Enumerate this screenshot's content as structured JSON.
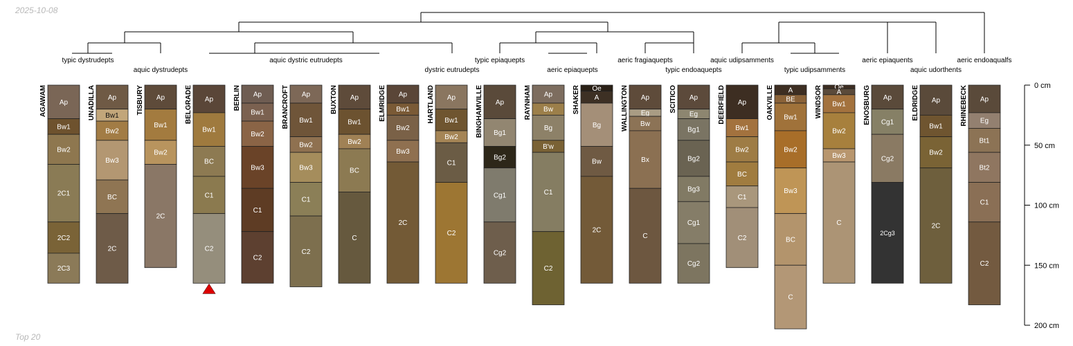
{
  "header": {
    "date": "2025-10-08"
  },
  "footer": {
    "label": "Top 20"
  },
  "chart_data": {
    "type": "soil-profile",
    "depth_axis": {
      "unit": "cm",
      "ticks": [
        0,
        50,
        100,
        150,
        200
      ],
      "tick_labels": [
        "0 cm",
        "50 cm",
        "100 cm",
        "150 cm",
        "200 cm"
      ]
    },
    "marker": {
      "profile": "BELGRADE",
      "color": "#dd0000"
    },
    "subgroups": [
      "typic dystrudepts",
      "aquic dystrudepts",
      "aquic dystric eutrudepts",
      "dystric eutrudepts",
      "typic epiaquepts",
      "aeric epiaquepts",
      "aeric fragiaquepts",
      "typic endoaquepts",
      "aquic udipsamments",
      "typic udipsamments",
      "aeric epiaquents",
      "aquic udorthents",
      "aeric endoaqualfs"
    ],
    "profiles": [
      {
        "name": "AGAWAM",
        "horizons": [
          {
            "name": "Ap",
            "top": 0,
            "bottom": 28,
            "color": "#7a6656"
          },
          {
            "name": "Bw1",
            "top": 28,
            "bottom": 41,
            "color": "#6e522e"
          },
          {
            "name": "Bw2",
            "top": 41,
            "bottom": 66,
            "color": "#8e774f"
          },
          {
            "name": "2C1",
            "top": 66,
            "bottom": 114,
            "color": "#8a7b55"
          },
          {
            "name": "2C2",
            "top": 114,
            "bottom": 140,
            "color": "#7a6337"
          },
          {
            "name": "2C3",
            "top": 140,
            "bottom": 165,
            "color": "#8b7a58"
          }
        ]
      },
      {
        "name": "UNADILLA",
        "horizons": [
          {
            "name": "Ap",
            "top": 0,
            "bottom": 20,
            "color": "#6f5a45"
          },
          {
            "name": "Bw1",
            "top": 20,
            "bottom": 30,
            "color": "#c2a67a"
          },
          {
            "name": "Bw2",
            "top": 30,
            "bottom": 46,
            "color": "#a27c45"
          },
          {
            "name": "Bw3",
            "top": 46,
            "bottom": 79,
            "color": "#b39772"
          },
          {
            "name": "BC",
            "top": 79,
            "bottom": 107,
            "color": "#8f7553"
          },
          {
            "name": "2C",
            "top": 107,
            "bottom": 165,
            "color": "#6e5b48"
          }
        ]
      },
      {
        "name": "TISBURY",
        "horizons": [
          {
            "name": "Ap",
            "top": 0,
            "bottom": 20,
            "color": "#5e4b3a"
          },
          {
            "name": "Bw1",
            "top": 20,
            "bottom": 46,
            "color": "#a37b3f"
          },
          {
            "name": "Bw2",
            "top": 46,
            "bottom": 66,
            "color": "#b8945e"
          },
          {
            "name": "2C",
            "top": 66,
            "bottom": 152,
            "color": "#8a7766"
          }
        ]
      },
      {
        "name": "BELGRADE",
        "horizons": [
          {
            "name": "Ap",
            "top": 0,
            "bottom": 23,
            "color": "#5a4638"
          },
          {
            "name": "Bw1",
            "top": 23,
            "bottom": 51,
            "color": "#9f7a3e"
          },
          {
            "name": "BC",
            "top": 51,
            "bottom": 76,
            "color": "#8d7a52"
          },
          {
            "name": "C1",
            "top": 76,
            "bottom": 107,
            "color": "#8b7a4f"
          },
          {
            "name": "C2",
            "top": 107,
            "bottom": 165,
            "color": "#958e7c"
          }
        ]
      },
      {
        "name": "BERLIN",
        "horizons": [
          {
            "name": "Ap",
            "top": 0,
            "bottom": 15,
            "color": "#6f5d52"
          },
          {
            "name": "Bw1",
            "top": 15,
            "bottom": 30,
            "color": "#7b6150"
          },
          {
            "name": "Bw2",
            "top": 30,
            "bottom": 51,
            "color": "#8a6446"
          },
          {
            "name": "Bw3",
            "top": 51,
            "bottom": 86,
            "color": "#6a4328"
          },
          {
            "name": "C1",
            "top": 86,
            "bottom": 122,
            "color": "#5e3c24"
          },
          {
            "name": "C2",
            "top": 122,
            "bottom": 165,
            "color": "#5d4030"
          }
        ]
      },
      {
        "name": "BRANCROFT",
        "horizons": [
          {
            "name": "Ap",
            "top": 0,
            "bottom": 15,
            "color": "#7d6857"
          },
          {
            "name": "Bw1",
            "top": 15,
            "bottom": 43,
            "color": "#6f5539"
          },
          {
            "name": "Bw2",
            "top": 43,
            "bottom": 56,
            "color": "#8f7150"
          },
          {
            "name": "Bw3",
            "top": 56,
            "bottom": 81,
            "color": "#a58d5c"
          },
          {
            "name": "C1",
            "top": 81,
            "bottom": 109,
            "color": "#8b7f57"
          },
          {
            "name": "C2",
            "top": 109,
            "bottom": 168,
            "color": "#7d6f4e"
          }
        ]
      },
      {
        "name": "BUXTON",
        "horizons": [
          {
            "name": "Ap",
            "top": 0,
            "bottom": 20,
            "color": "#5e4b3a"
          },
          {
            "name": "Bw1",
            "top": 20,
            "bottom": 41,
            "color": "#6c5230"
          },
          {
            "name": "Bw2",
            "top": 41,
            "bottom": 53,
            "color": "#a08155"
          },
          {
            "name": "BC",
            "top": 53,
            "bottom": 89,
            "color": "#8c7a52"
          },
          {
            "name": "C",
            "top": 89,
            "bottom": 165,
            "color": "#66593e"
          }
        ]
      },
      {
        "name": "ELMRIDGE",
        "horizons": [
          {
            "name": "Ap",
            "top": 0,
            "bottom": 15,
            "color": "#5a4638"
          },
          {
            "name": "Bw1",
            "top": 15,
            "bottom": 25,
            "color": "#7a5a36"
          },
          {
            "name": "Bw2",
            "top": 25,
            "bottom": 46,
            "color": "#7a6147"
          },
          {
            "name": "Bw3",
            "top": 46,
            "bottom": 64,
            "color": "#8f7050"
          },
          {
            "name": "2C",
            "top": 64,
            "bottom": 165,
            "color": "#735a36"
          }
        ]
      },
      {
        "name": "HARTLAND",
        "horizons": [
          {
            "name": "Ap",
            "top": 0,
            "bottom": 20,
            "color": "#8a7660"
          },
          {
            "name": "Bw1",
            "top": 20,
            "bottom": 38,
            "color": "#6f5530"
          },
          {
            "name": "Bw2",
            "top": 38,
            "bottom": 48,
            "color": "#a58556"
          },
          {
            "name": "C1",
            "top": 48,
            "bottom": 81,
            "color": "#6b5c45"
          },
          {
            "name": "C2",
            "top": 81,
            "bottom": 165,
            "color": "#9d7633"
          }
        ]
      },
      {
        "name": "BINGHAMVILLE",
        "horizons": [
          {
            "name": "Ap",
            "top": 0,
            "bottom": 28,
            "color": "#5a4a3a"
          },
          {
            "name": "Bg1",
            "top": 28,
            "bottom": 51,
            "color": "#928671"
          },
          {
            "name": "Bg2",
            "top": 51,
            "bottom": 69,
            "color": "#2d2719"
          },
          {
            "name": "Cg1",
            "top": 69,
            "bottom": 114,
            "color": "#7f7b6d"
          },
          {
            "name": "Cg2",
            "top": 114,
            "bottom": 165,
            "color": "#6e5e4c"
          }
        ]
      },
      {
        "name": "RAYNHAM",
        "horizons": [
          {
            "name": "Ap",
            "top": 0,
            "bottom": 15,
            "color": "#7d6d5f"
          },
          {
            "name": "Bw",
            "top": 15,
            "bottom": 25,
            "color": "#9c7f4a"
          },
          {
            "name": "Bg",
            "top": 25,
            "bottom": 46,
            "color": "#8d8168"
          },
          {
            "name": "B'w",
            "top": 46,
            "bottom": 56,
            "color": "#7a6235"
          },
          {
            "name": "C1",
            "top": 56,
            "bottom": 122,
            "color": "#857d62"
          },
          {
            "name": "C2",
            "top": 122,
            "bottom": 183,
            "color": "#6e6232"
          }
        ]
      },
      {
        "name": "SHAKER",
        "horizons": [
          {
            "name": "Oe",
            "top": 0,
            "bottom": 5,
            "color": "#2a2016"
          },
          {
            "name": "A",
            "top": 5,
            "bottom": 15,
            "color": "#3d3024"
          },
          {
            "name": "Bg",
            "top": 15,
            "bottom": 51,
            "color": "#a48f78"
          },
          {
            "name": "Bw",
            "top": 51,
            "bottom": 76,
            "color": "#6f5a43"
          },
          {
            "name": "2C",
            "top": 76,
            "bottom": 165,
            "color": "#735a38"
          }
        ]
      },
      {
        "name": "WALLINGTON",
        "horizons": [
          {
            "name": "Ap",
            "top": 0,
            "bottom": 20,
            "color": "#5e4b3a"
          },
          {
            "name": "Eg",
            "top": 20,
            "bottom": 26,
            "color": "#a99c84"
          },
          {
            "name": "Bw",
            "top": 26,
            "bottom": 38,
            "color": "#8c7356"
          },
          {
            "name": "Bx",
            "top": 38,
            "bottom": 86,
            "color": "#8b7052"
          },
          {
            "name": "C",
            "top": 86,
            "bottom": 165,
            "color": "#6d5740"
          }
        ]
      },
      {
        "name": "SCITICO",
        "horizons": [
          {
            "name": "Ap",
            "top": 0,
            "bottom": 20,
            "color": "#5c4a3b"
          },
          {
            "name": "Eg",
            "top": 20,
            "bottom": 28,
            "color": "#8d8670"
          },
          {
            "name": "Bg1",
            "top": 28,
            "bottom": 46,
            "color": "#7a7463"
          },
          {
            "name": "Bg2",
            "top": 46,
            "bottom": 76,
            "color": "#6a6352"
          },
          {
            "name": "Bg3",
            "top": 76,
            "bottom": 97,
            "color": "#817a64"
          },
          {
            "name": "Cg1",
            "top": 97,
            "bottom": 132,
            "color": "#857d68"
          },
          {
            "name": "Cg2",
            "top": 132,
            "bottom": 165,
            "color": "#7d7560"
          }
        ]
      },
      {
        "name": "DEERFIELD",
        "horizons": [
          {
            "name": "Ap",
            "top": 0,
            "bottom": 28,
            "color": "#3d2e22"
          },
          {
            "name": "Bw1",
            "top": 28,
            "bottom": 43,
            "color": "#a3723e"
          },
          {
            "name": "Bw2",
            "top": 43,
            "bottom": 64,
            "color": "#9e7c45"
          },
          {
            "name": "BC",
            "top": 64,
            "bottom": 84,
            "color": "#a07c3f"
          },
          {
            "name": "C1",
            "top": 84,
            "bottom": 102,
            "color": "#a9977c"
          },
          {
            "name": "C2",
            "top": 102,
            "bottom": 152,
            "color": "#a18f78"
          }
        ]
      },
      {
        "name": "OAKVILLE",
        "horizons": [
          {
            "name": "A",
            "top": 0,
            "bottom": 8,
            "color": "#3d2e22"
          },
          {
            "name": "BE",
            "top": 8,
            "bottom": 15,
            "color": "#8a6238"
          },
          {
            "name": "Bw1",
            "top": 15,
            "bottom": 38,
            "color": "#a0723a"
          },
          {
            "name": "Bw2",
            "top": 38,
            "bottom": 69,
            "color": "#a86e29"
          },
          {
            "name": "Bw3",
            "top": 69,
            "bottom": 107,
            "color": "#bf9556"
          },
          {
            "name": "BC",
            "top": 107,
            "bottom": 150,
            "color": "#b3946c"
          },
          {
            "name": "C",
            "top": 150,
            "bottom": 203,
            "color": "#b39776"
          }
        ]
      },
      {
        "name": "WINDSOR",
        "horizons": [
          {
            "name": "Oe",
            "top": 0,
            "bottom": 3,
            "color": "#3d2e22"
          },
          {
            "name": "A",
            "top": 3,
            "bottom": 8,
            "color": "#5a4a3a"
          },
          {
            "name": "Bw1",
            "top": 8,
            "bottom": 23,
            "color": "#a3723e"
          },
          {
            "name": "Bw2",
            "top": 23,
            "bottom": 53,
            "color": "#a7803d"
          },
          {
            "name": "Bw3",
            "top": 53,
            "bottom": 64,
            "color": "#b8966e"
          },
          {
            "name": "C",
            "top": 64,
            "bottom": 165,
            "color": "#ac9475"
          }
        ]
      },
      {
        "name": "ENOSBURG",
        "horizons": [
          {
            "name": "Ap",
            "top": 0,
            "bottom": 20,
            "color": "#5a4a3a"
          },
          {
            "name": "Cg1",
            "top": 20,
            "bottom": 41,
            "color": "#868066"
          },
          {
            "name": "Cg2",
            "top": 41,
            "bottom": 81,
            "color": "#8a7a63"
          },
          {
            "name": "2Cg3",
            "top": 81,
            "bottom": 165,
            "color": "#333333"
          }
        ]
      },
      {
        "name": "ELDRIDGE",
        "horizons": [
          {
            "name": "Ap",
            "top": 0,
            "bottom": 25,
            "color": "#5a4a3a"
          },
          {
            "name": "Bw1",
            "top": 25,
            "bottom": 43,
            "color": "#6f5530"
          },
          {
            "name": "Bw2",
            "top": 43,
            "bottom": 69,
            "color": "#7a6335"
          },
          {
            "name": "2C",
            "top": 69,
            "bottom": 165,
            "color": "#6e5f3d"
          }
        ]
      },
      {
        "name": "RHINEBECK",
        "horizons": [
          {
            "name": "Ap",
            "top": 0,
            "bottom": 23,
            "color": "#5a4a3a"
          },
          {
            "name": "Eg",
            "top": 23,
            "bottom": 36,
            "color": "#938070"
          },
          {
            "name": "Bt1",
            "top": 36,
            "bottom": 56,
            "color": "#8c7355"
          },
          {
            "name": "Bt2",
            "top": 56,
            "bottom": 81,
            "color": "#8f7660"
          },
          {
            "name": "C1",
            "top": 81,
            "bottom": 114,
            "color": "#8a6f55"
          },
          {
            "name": "C2",
            "top": 114,
            "bottom": 183,
            "color": "#735a40"
          }
        ]
      }
    ]
  }
}
